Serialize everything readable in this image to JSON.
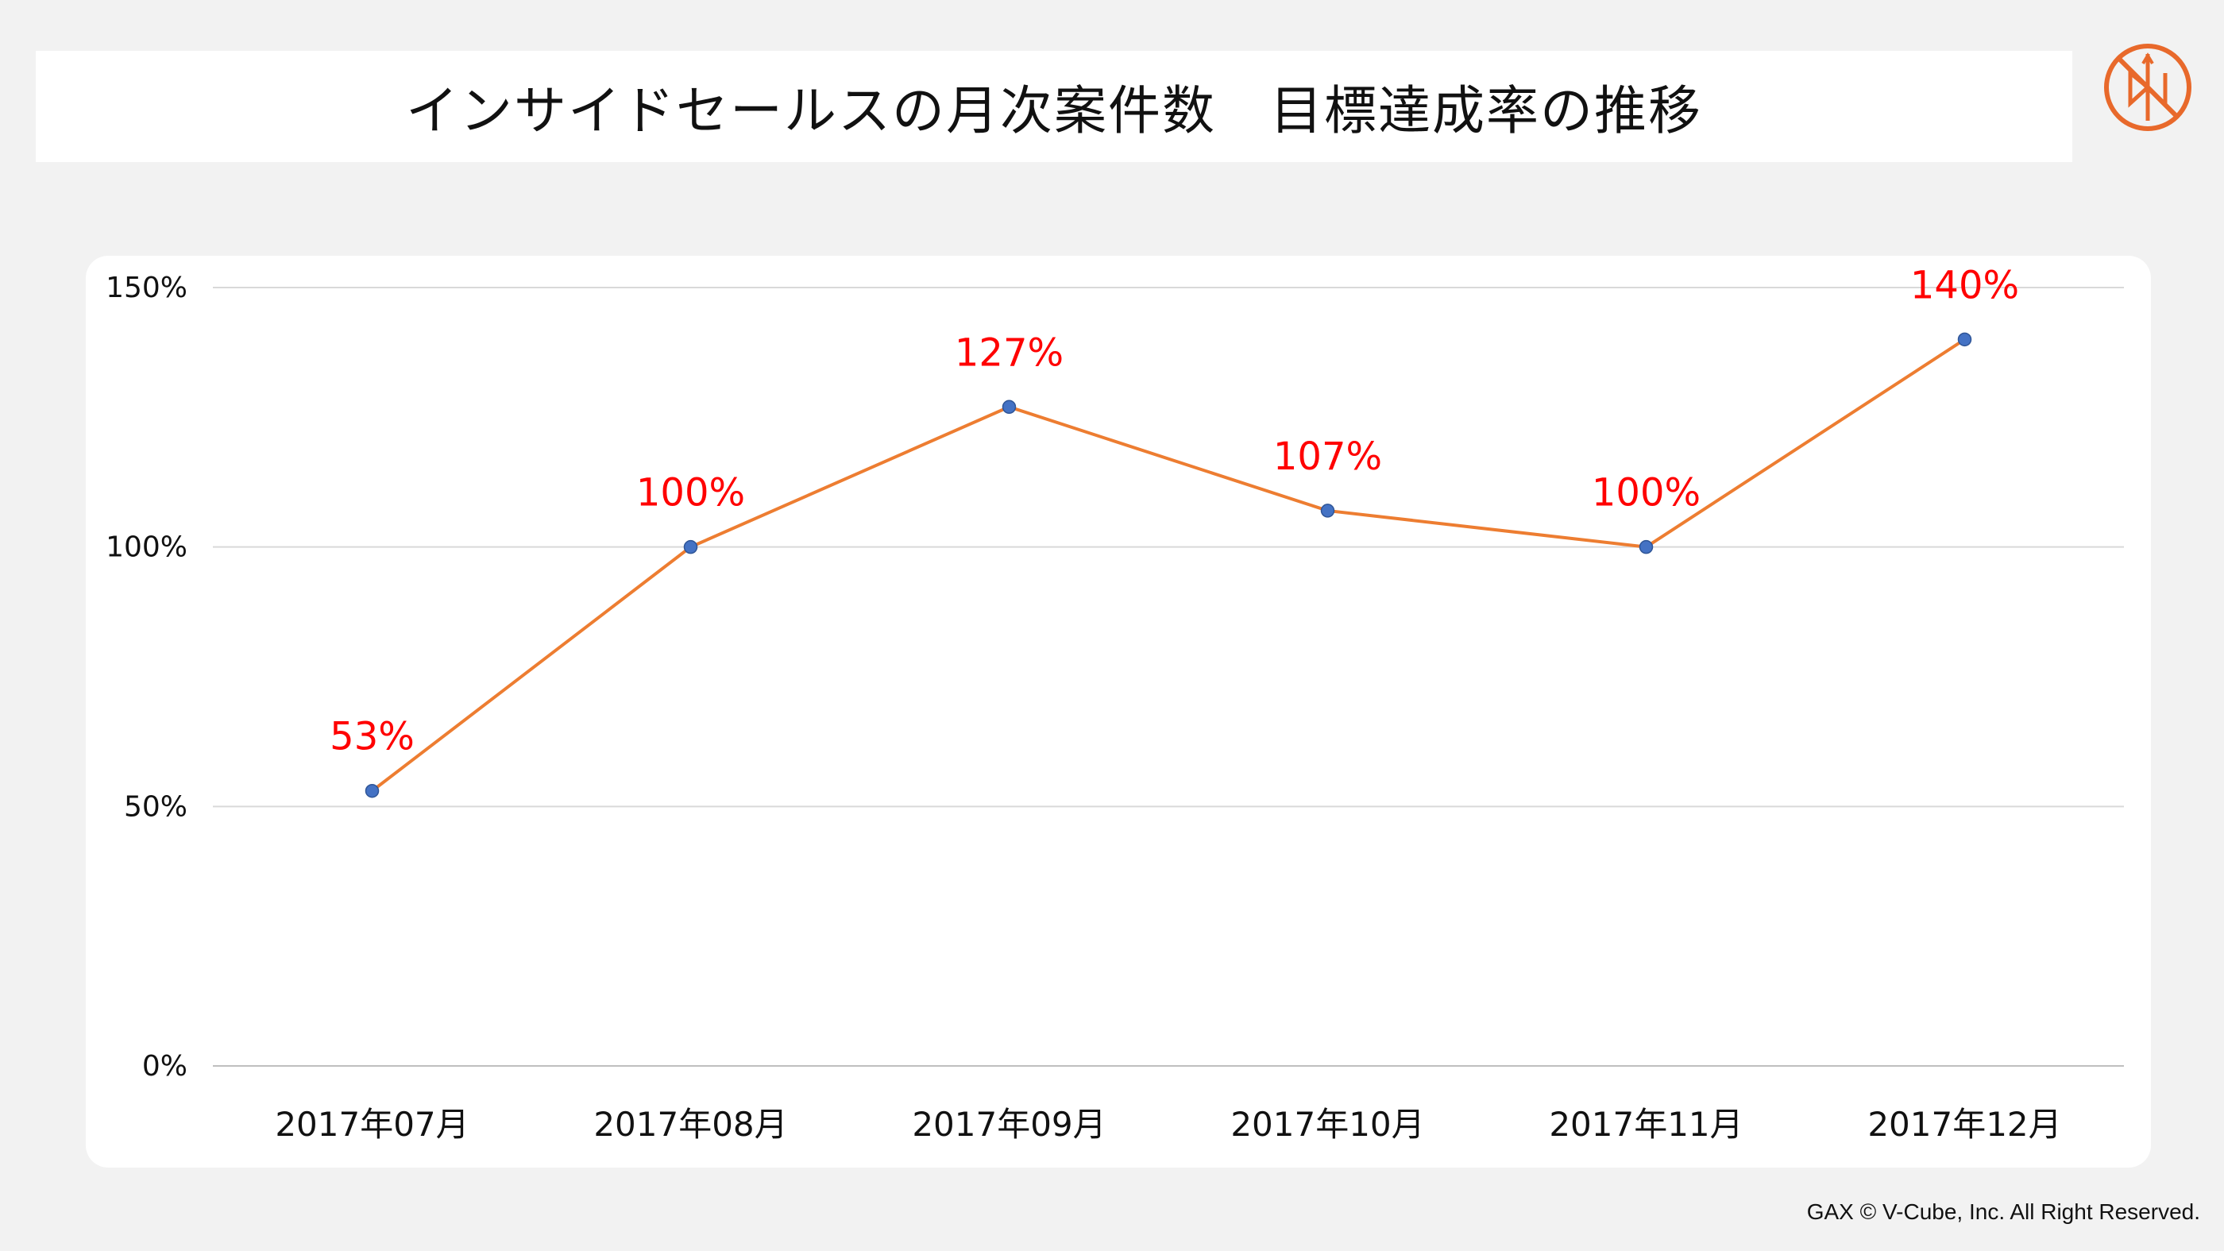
{
  "header": {
    "title": "インサイドセールスの月次案件数　目標達成率の推移"
  },
  "logo": {
    "icon": "compass-logo-icon",
    "color": "#e8692b"
  },
  "footer": {
    "copyright": "GAX © V-Cube, Inc. All Right Reserved."
  },
  "chart_data": {
    "type": "line",
    "categories": [
      "2017年07月",
      "2017年08月",
      "2017年09月",
      "2017年10月",
      "2017年11月",
      "2017年12月"
    ],
    "series": [
      {
        "values": [
          53,
          100,
          127,
          107,
          100,
          140
        ],
        "labels": [
          "53%",
          "100%",
          "127%",
          "107%",
          "100%",
          "140%"
        ]
      }
    ],
    "ylim": [
      0,
      150
    ],
    "yticks": [
      0,
      50,
      100,
      150
    ],
    "ytick_labels": [
      "0%",
      "50%",
      "100%",
      "150%"
    ],
    "grid": true,
    "colors": {
      "line": "#ed7d31",
      "marker": "#4472c4",
      "data_label": "#ff0000",
      "grid": "#d9d9d9"
    }
  }
}
